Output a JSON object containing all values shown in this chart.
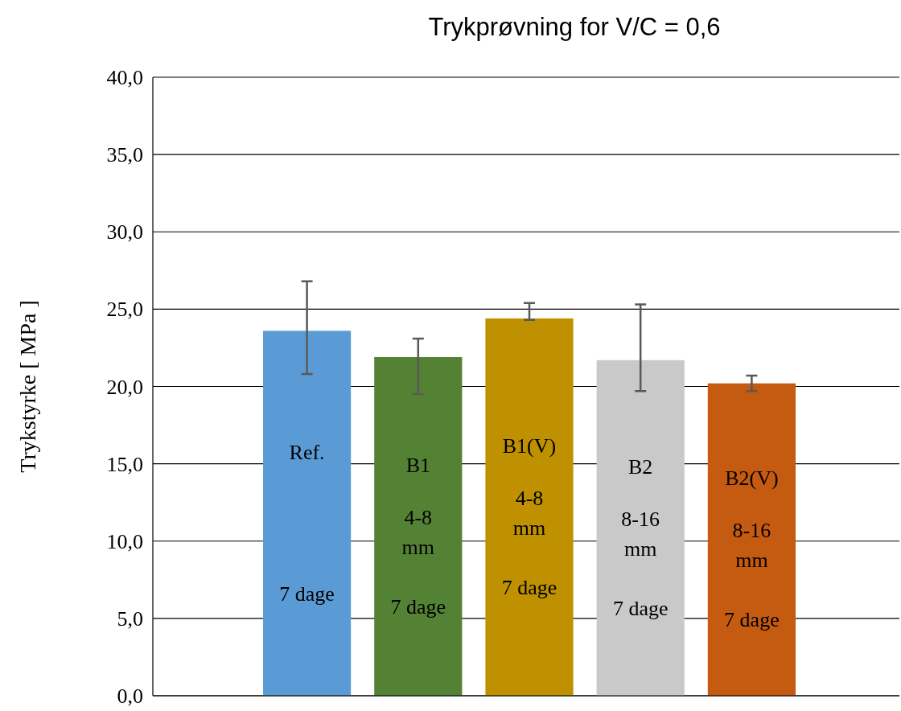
{
  "chart_data": {
    "type": "bar",
    "title": "Trykprøvning for V/C = 0,6",
    "ylabel": "Trykstyrke [ MPa ]",
    "categories": [
      "Ref.\n\n\n\n\n7 dage",
      "B1\n\n4-8\nmm\n\n7 dage",
      "B1(V)\n\n4-8\nmm\n\n7 dage",
      "B2\n\n8-16\nmm\n\n7 dage",
      "B2(V)\n\n8-16\nmm\n\n7 dage"
    ],
    "values": [
      23.6,
      21.9,
      24.4,
      21.7,
      20.2
    ],
    "colors": [
      "#5b9bd5",
      "#548235",
      "#bf9000",
      "#c9c9c9",
      "#c55a11"
    ],
    "errors": [
      [
        20.8,
        26.8
      ],
      [
        19.5,
        23.1
      ],
      [
        24.3,
        25.4
      ],
      [
        19.7,
        25.3
      ],
      [
        19.7,
        20.7
      ]
    ],
    "ylim": [
      0,
      40
    ],
    "yticks": [
      {
        "value": 0,
        "label": "0,0"
      },
      {
        "value": 5,
        "label": "5,0"
      },
      {
        "value": 10,
        "label": "10,0"
      },
      {
        "value": 15,
        "label": "15,0"
      },
      {
        "value": 20,
        "label": "20,0"
      },
      {
        "value": 25,
        "label": "25,0"
      },
      {
        "value": 30,
        "label": "30,0"
      },
      {
        "value": 35,
        "label": "35,0"
      },
      {
        "value": 40,
        "label": "40,0"
      }
    ],
    "grid": "y"
  }
}
